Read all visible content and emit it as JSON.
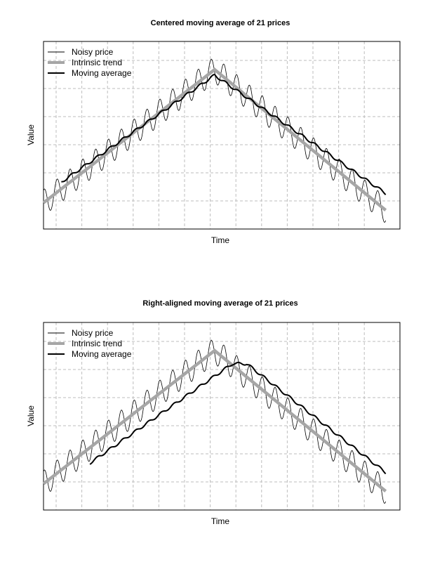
{
  "chart_data": [
    {
      "type": "line",
      "title": "Centered moving average of 21 prices",
      "xlabel": "Time",
      "ylabel": "Value",
      "grid": true,
      "legend_position": "top-left",
      "legend": [
        "Noisy price",
        "Intrinsic trend",
        "Moving average"
      ],
      "x_range": [
        0,
        100
      ],
      "y_range": [
        0,
        100
      ],
      "series": [
        {
          "name": "Noisy price",
          "color": "#000000",
          "style": "thin-oscillating",
          "noise_amplitude": 7,
          "noise_period": 3.6
        },
        {
          "name": "Intrinsic trend",
          "color": "#a6a6a6",
          "style": "thick",
          "x": [
            0,
            48,
            96
          ],
          "y": [
            14,
            85,
            10
          ]
        },
        {
          "name": "Moving average",
          "color": "#000000",
          "style": "medium",
          "alignment": "centered",
          "x": [
            5,
            48,
            96
          ],
          "y": [
            25,
            82,
            19
          ]
        }
      ]
    },
    {
      "type": "line",
      "title": "Right-aligned moving average of 21 prices",
      "xlabel": "Time",
      "ylabel": "Value",
      "grid": true,
      "legend_position": "top-left",
      "legend": [
        "Noisy price",
        "Intrinsic trend",
        "Moving average"
      ],
      "x_range": [
        0,
        100
      ],
      "y_range": [
        0,
        100
      ],
      "series": [
        {
          "name": "Noisy price",
          "color": "#000000",
          "style": "thin-oscillating",
          "noise_amplitude": 7,
          "noise_period": 3.6
        },
        {
          "name": "Intrinsic trend",
          "color": "#a6a6a6",
          "style": "thick",
          "x": [
            0,
            48,
            96
          ],
          "y": [
            14,
            85,
            10
          ]
        },
        {
          "name": "Moving average",
          "color": "#000000",
          "style": "medium",
          "alignment": "right",
          "x": [
            13,
            53,
            57,
            96
          ],
          "y": [
            25,
            78,
            78,
            20
          ]
        }
      ]
    }
  ]
}
